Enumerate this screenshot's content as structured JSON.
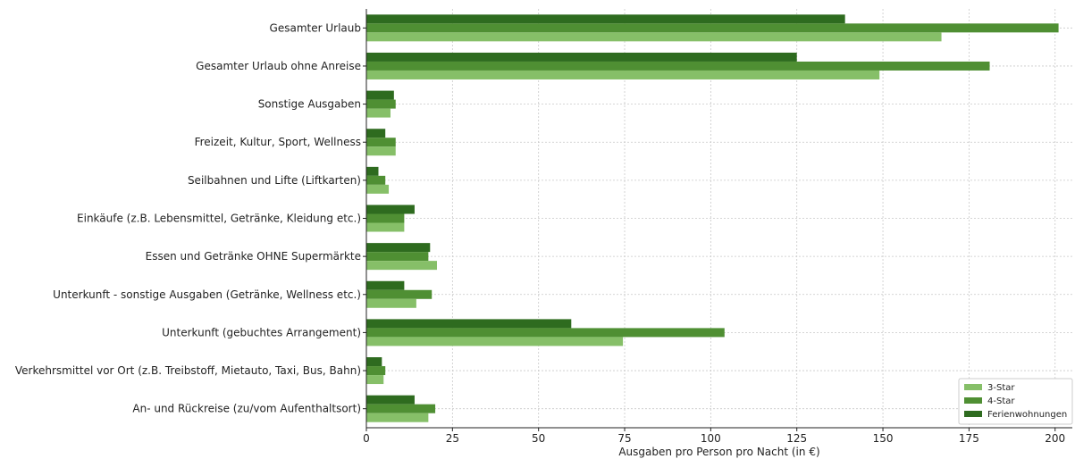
{
  "chart_data": {
    "type": "bar",
    "orientation": "horizontal",
    "categories": [
      "Gesamter Urlaub",
      "Gesamter Urlaub ohne Anreise",
      "Sonstige Ausgaben",
      "Freizeit, Kultur, Sport, Wellness",
      "Seilbahnen und Lifte (Liftkarten)",
      "Einkäufe (z.B. Lebensmittel, Getränke, Kleidung etc.)",
      "Essen und Getränke OHNE Supermärkte",
      "Unterkunft - sonstige Ausgaben (Getränke, Wellness etc.)",
      "Unterkunft (gebuchtes Arrangement)",
      "Verkehrsmittel vor Ort (z.B. Treibstoff, Mietauto, Taxi, Bus, Bahn)",
      "An- und Rückreise (zu/vom Aufenthaltsort)"
    ],
    "series": [
      {
        "name": "Ferienwohnungen",
        "color": "#2e6b1f",
        "values": [
          139,
          125,
          8,
          5.5,
          3.5,
          14,
          18.5,
          11,
          59.5,
          4.5,
          14
        ]
      },
      {
        "name": "4-Star",
        "color": "#4f8f33",
        "values": [
          201,
          181,
          8.5,
          8.5,
          5.5,
          11,
          18,
          19,
          104,
          5.5,
          20
        ]
      },
      {
        "name": "3-Star",
        "color": "#86bf68",
        "values": [
          167,
          149,
          7,
          8.5,
          6.5,
          11,
          20.5,
          14.5,
          74.5,
          5,
          18
        ]
      }
    ],
    "legend_order": [
      "3-Star",
      "4-Star",
      "Ferienwohnungen"
    ],
    "xlabel": "Ausgaben pro Person pro Nacht (in €)",
    "ylabel": "",
    "title": "",
    "xlim": [
      0,
      205
    ],
    "xticks": [
      0,
      25,
      50,
      75,
      100,
      125,
      150,
      175,
      200
    ],
    "grid": true,
    "legend_position": "bottom-right"
  }
}
